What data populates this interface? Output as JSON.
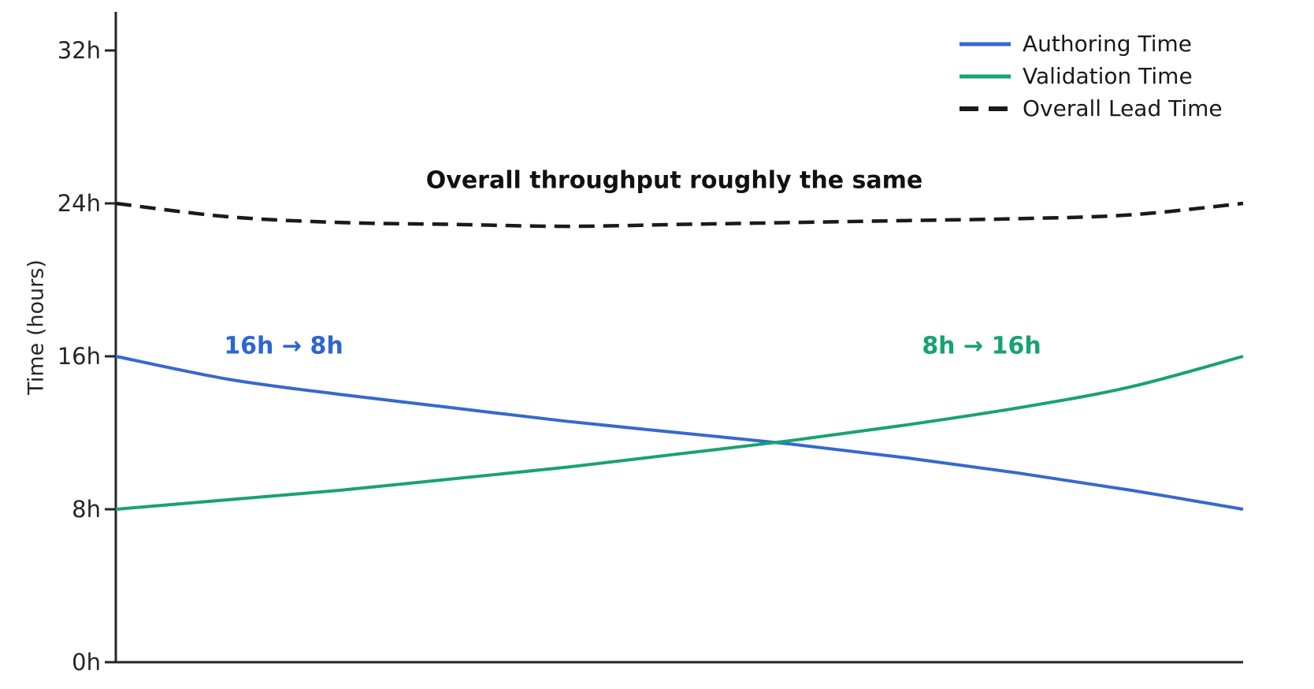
{
  "chart_data": {
    "type": "line",
    "title": "",
    "xlabel": "",
    "ylabel": "Time (hours)",
    "ylim": [
      0,
      32
    ],
    "grid": false,
    "legend_position": "top-right",
    "x": [
      0,
      1,
      2,
      3,
      4,
      5,
      6,
      7,
      8,
      9,
      10
    ],
    "x_ticks_visible": false,
    "y_ticks": [
      {
        "value": 0,
        "label": "0h"
      },
      {
        "value": 8,
        "label": "8h"
      },
      {
        "value": 16,
        "label": "16h"
      },
      {
        "value": 24,
        "label": "24h"
      },
      {
        "value": 32,
        "label": "32h"
      }
    ],
    "series": [
      {
        "name": "Authoring Time",
        "style": "solid",
        "color": "#3768CE",
        "values": [
          16,
          14.8,
          14.0,
          13.3,
          12.6,
          12.0,
          11.4,
          10.7,
          9.9,
          9.0,
          8.0
        ]
      },
      {
        "name": "Validation Time",
        "style": "solid",
        "color": "#19A271",
        "values": [
          8,
          8.5,
          9.0,
          9.6,
          10.2,
          10.9,
          11.6,
          12.4,
          13.3,
          14.4,
          16.0
        ]
      },
      {
        "name": "Overall Lead Time",
        "style": "dashed",
        "color": "#1a1a1a",
        "values": [
          24,
          23.3,
          23.0,
          22.9,
          22.8,
          22.9,
          23.0,
          23.1,
          23.2,
          23.4,
          24.0
        ]
      }
    ],
    "annotations": [
      {
        "id": "center",
        "text": "Overall throughput roughly the same",
        "color": "#111111"
      },
      {
        "id": "left",
        "text": "16h → 8h",
        "color": "#2D66D2"
      },
      {
        "id": "right",
        "text": "8h → 16h",
        "color": "#17A36F"
      }
    ],
    "axis_color": "#262626"
  }
}
